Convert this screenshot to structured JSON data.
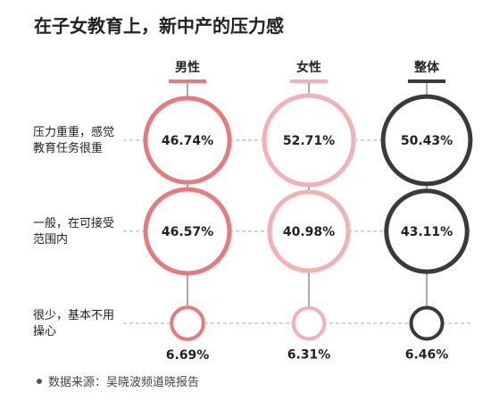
{
  "title": "在子女教育上，新中产的压力感",
  "source": "数据来源：吴晓波频道晓报告",
  "colors": {
    "male": "#e67a7e",
    "female": "#f4b1b5",
    "overall": "#3a3a3a",
    "guide": "#aaaaaa"
  },
  "chart_data": {
    "type": "bubble-matrix",
    "categories": [
      "男性",
      "女性",
      "整体"
    ],
    "rows": [
      {
        "label_lines": [
          "压力重重，感觉",
          "教育任务很重"
        ],
        "values": [
          46.74,
          52.71,
          50.43
        ],
        "value_labels": [
          "46.74%",
          "52.71%",
          "50.43%"
        ]
      },
      {
        "label_lines": [
          "一般，在可接受",
          "范围内"
        ],
        "values": [
          46.57,
          40.98,
          43.11
        ],
        "value_labels": [
          "46.57%",
          "40.98%",
          "43.11%"
        ]
      },
      {
        "label_lines": [
          "很少，基本不用",
          "操心"
        ],
        "values": [
          6.69,
          6.31,
          6.46
        ],
        "value_labels": [
          "6.69%",
          "6.31%",
          "6.46%"
        ]
      }
    ],
    "unit": "%"
  }
}
